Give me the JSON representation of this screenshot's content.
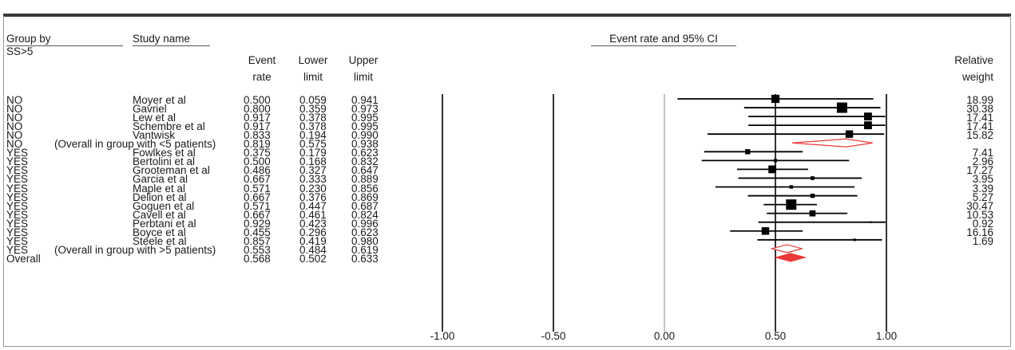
{
  "headers": {
    "group_by": "Group by",
    "study_name": "Study name",
    "subgroup": "SS>5",
    "event_rate_1": "Event",
    "event_rate_2": "rate",
    "lower_1": "Lower",
    "lower_2": "limit",
    "upper_1": "Upper",
    "upper_2": "limit",
    "ci_title": "Event rate and 95% CI",
    "weight_1": "Relative",
    "weight_2": "weight"
  },
  "chart_data": {
    "type": "forest",
    "title": "Event rate and 95% CI",
    "xlim": [
      -1.0,
      1.0
    ],
    "x_ticks": [
      -1.0,
      -0.5,
      0.0,
      0.5,
      1.0
    ],
    "x_tick_labels": [
      "-1.00",
      "-0.50",
      "0.00",
      "0.50",
      "1.00"
    ],
    "rows": [
      {
        "group": "NO",
        "study": "Moyer et al",
        "rate": 0.5,
        "lower": 0.059,
        "upper": 0.941,
        "weight": "18.99",
        "rate_s": "0.500",
        "lower_s": "0.059",
        "upper_s": "0.941",
        "kind": "study"
      },
      {
        "group": "NO",
        "study": "Gavriel",
        "rate": 0.8,
        "lower": 0.359,
        "upper": 0.973,
        "weight": "30.38",
        "rate_s": "0.800",
        "lower_s": "0.359",
        "upper_s": "0.973",
        "kind": "study"
      },
      {
        "group": "NO",
        "study": "Lew et al",
        "rate": 0.917,
        "lower": 0.378,
        "upper": 0.995,
        "weight": "17.41",
        "rate_s": "0.917",
        "lower_s": "0.378",
        "upper_s": "0.995",
        "kind": "study"
      },
      {
        "group": "NO",
        "study": "Schembre et al",
        "rate": 0.917,
        "lower": 0.378,
        "upper": 0.995,
        "weight": "17.41",
        "rate_s": "0.917",
        "lower_s": "0.378",
        "upper_s": "0.995",
        "kind": "study"
      },
      {
        "group": "NO",
        "study": "Vantwisk",
        "rate": 0.833,
        "lower": 0.194,
        "upper": 0.99,
        "weight": "15.82",
        "rate_s": "0.833",
        "lower_s": "0.194",
        "upper_s": "0.990",
        "kind": "study"
      },
      {
        "group": "NO",
        "study": "(Overall in group with <5 patients)",
        "rate": 0.819,
        "lower": 0.575,
        "upper": 0.938,
        "weight": "",
        "rate_s": "0.819",
        "lower_s": "0.575",
        "upper_s": "0.938",
        "kind": "subtotal"
      },
      {
        "group": "YES",
        "study": "Fowlkes et al",
        "rate": 0.375,
        "lower": 0.179,
        "upper": 0.623,
        "weight": "7.41",
        "rate_s": "0.375",
        "lower_s": "0.179",
        "upper_s": "0.623",
        "kind": "study"
      },
      {
        "group": "YES",
        "study": "Bertolini et al",
        "rate": 0.5,
        "lower": 0.168,
        "upper": 0.832,
        "weight": "2.96",
        "rate_s": "0.500",
        "lower_s": "0.168",
        "upper_s": "0.832",
        "kind": "study"
      },
      {
        "group": "YES",
        "study": "Grooteman et al",
        "rate": 0.486,
        "lower": 0.327,
        "upper": 0.647,
        "weight": "17.27",
        "rate_s": "0.486",
        "lower_s": "0.327",
        "upper_s": "0.647",
        "kind": "study"
      },
      {
        "group": "YES",
        "study": "Garcia et al",
        "rate": 0.667,
        "lower": 0.333,
        "upper": 0.889,
        "weight": "3.95",
        "rate_s": "0.667",
        "lower_s": "0.333",
        "upper_s": "0.889",
        "kind": "study"
      },
      {
        "group": "YES",
        "study": "Maple et al",
        "rate": 0.571,
        "lower": 0.23,
        "upper": 0.856,
        "weight": "3.39",
        "rate_s": "0.571",
        "lower_s": "0.230",
        "upper_s": "0.856",
        "kind": "study"
      },
      {
        "group": "YES",
        "study": "Delion et al",
        "rate": 0.667,
        "lower": 0.376,
        "upper": 0.869,
        "weight": "5.27",
        "rate_s": "0.667",
        "lower_s": "0.376",
        "upper_s": "0.869",
        "kind": "study"
      },
      {
        "group": "YES",
        "study": "Goguen et al",
        "rate": 0.571,
        "lower": 0.447,
        "upper": 0.687,
        "weight": "30.47",
        "rate_s": "0.571",
        "lower_s": "0.447",
        "upper_s": "0.687",
        "kind": "study"
      },
      {
        "group": "YES",
        "study": "Cavell et al",
        "rate": 0.667,
        "lower": 0.461,
        "upper": 0.824,
        "weight": "10.53",
        "rate_s": "0.667",
        "lower_s": "0.461",
        "upper_s": "0.824",
        "kind": "study"
      },
      {
        "group": "YES",
        "study": "Perbtani et al",
        "rate": 0.929,
        "lower": 0.423,
        "upper": 0.996,
        "weight": "0.92",
        "rate_s": "0.929",
        "lower_s": "0.423",
        "upper_s": "0.996",
        "kind": "study"
      },
      {
        "group": "YES",
        "study": "Boyce et al",
        "rate": 0.455,
        "lower": 0.296,
        "upper": 0.623,
        "weight": "16.16",
        "rate_s": "0.455",
        "lower_s": "0.296",
        "upper_s": "0.623",
        "kind": "study"
      },
      {
        "group": "YES",
        "study": "Steele et al",
        "rate": 0.857,
        "lower": 0.419,
        "upper": 0.98,
        "weight": "1.69",
        "rate_s": "0.857",
        "lower_s": "0.419",
        "upper_s": "0.980",
        "kind": "study"
      },
      {
        "group": "YES",
        "study": "(Overall in group with >5 patients)",
        "rate": 0.553,
        "lower": 0.484,
        "upper": 0.619,
        "weight": "",
        "rate_s": "0.553",
        "lower_s": "0.484",
        "upper_s": "0.619",
        "kind": "subtotal"
      },
      {
        "group": "Overall",
        "study": "",
        "rate": 0.568,
        "lower": 0.502,
        "upper": 0.633,
        "weight": "",
        "rate_s": "0.568",
        "lower_s": "0.502",
        "upper_s": "0.633",
        "kind": "overall"
      }
    ],
    "colors": {
      "marker": "#000000",
      "diamond_outline": "#e8393b",
      "overall_fill": "#e8393b",
      "axis": "#000000",
      "zero_line": "#8a8a8a"
    }
  }
}
